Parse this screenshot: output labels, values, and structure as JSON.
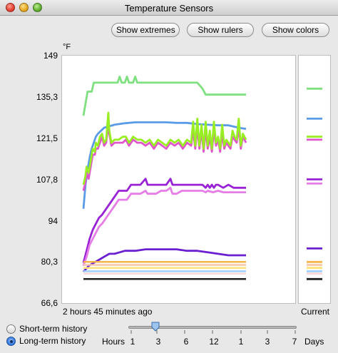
{
  "window": {
    "title": "Temperature Sensors"
  },
  "toolbar": {
    "show_extremes": "Show extremes",
    "show_rulers": "Show rulers",
    "show_colors": "Show colors"
  },
  "chart": {
    "unit": "°F",
    "x_left_label": "2 hours 45 minutes  ago",
    "x_right_label": "Current",
    "y_ticks": [
      "149",
      "135,3",
      "121,5",
      "107,8",
      "94",
      "80,3",
      "66,6"
    ]
  },
  "chart_data": {
    "type": "line",
    "ylim": [
      66.6,
      149
    ],
    "x_start_minutes_ago": 165,
    "series": [
      {
        "color": "#7fe07f",
        "current": 138,
        "points": [
          [
            0,
            129
          ],
          [
            2,
            133
          ],
          [
            4,
            137
          ],
          [
            8,
            137
          ],
          [
            10,
            140
          ],
          [
            30,
            140
          ],
          [
            33,
            140
          ],
          [
            35,
            142
          ],
          [
            37,
            140
          ],
          [
            40,
            140
          ],
          [
            42,
            142
          ],
          [
            44,
            140
          ],
          [
            48,
            140
          ],
          [
            50,
            142
          ],
          [
            52,
            140
          ],
          [
            60,
            140
          ],
          [
            75,
            140
          ],
          [
            80,
            140
          ],
          [
            90,
            140
          ],
          [
            110,
            140
          ],
          [
            115,
            138
          ],
          [
            118,
            136
          ],
          [
            130,
            136
          ],
          [
            150,
            136
          ],
          [
            157,
            136
          ]
        ]
      },
      {
        "color": "#5a9be8",
        "current": 128,
        "points": [
          [
            0,
            98
          ],
          [
            2,
            106
          ],
          [
            4,
            111
          ],
          [
            6,
            115
          ],
          [
            8,
            118
          ],
          [
            10,
            120
          ],
          [
            12,
            122
          ],
          [
            14,
            123
          ],
          [
            17,
            124
          ],
          [
            20,
            125
          ],
          [
            25,
            125.5
          ],
          [
            30,
            126
          ],
          [
            40,
            126.5
          ],
          [
            50,
            126.8
          ],
          [
            60,
            126.8
          ],
          [
            70,
            126.8
          ],
          [
            80,
            126.8
          ],
          [
            90,
            126.6
          ],
          [
            100,
            126.6
          ],
          [
            110,
            126.2
          ],
          [
            120,
            126
          ],
          [
            130,
            125.8
          ],
          [
            140,
            125.8
          ],
          [
            150,
            125
          ],
          [
            157,
            124.6
          ]
        ]
      },
      {
        "color": "#e055cc",
        "current": 121,
        "points": [
          [
            0,
            104
          ],
          [
            2,
            107
          ],
          [
            3,
            110
          ],
          [
            5,
            108
          ],
          [
            7,
            112
          ],
          [
            9,
            116
          ],
          [
            11,
            116
          ],
          [
            12,
            118
          ],
          [
            14,
            118
          ],
          [
            16,
            120
          ],
          [
            18,
            122
          ],
          [
            20,
            119
          ],
          [
            22,
            120
          ],
          [
            24,
            126
          ],
          [
            25,
            123
          ],
          [
            27,
            119
          ],
          [
            30,
            120
          ],
          [
            34,
            120
          ],
          [
            38,
            120
          ],
          [
            41,
            121
          ],
          [
            44,
            119
          ],
          [
            48,
            121
          ],
          [
            52,
            120
          ],
          [
            56,
            120
          ],
          [
            60,
            119
          ],
          [
            64,
            120
          ],
          [
            68,
            118
          ],
          [
            72,
            120
          ],
          [
            76,
            119
          ],
          [
            80,
            118
          ],
          [
            84,
            120
          ],
          [
            88,
            119
          ],
          [
            92,
            120
          ],
          [
            96,
            118
          ],
          [
            100,
            120
          ],
          [
            104,
            119
          ],
          [
            106,
            124
          ],
          [
            108,
            118
          ],
          [
            110,
            125
          ],
          [
            112,
            118
          ],
          [
            114,
            124
          ],
          [
            116,
            117
          ],
          [
            118,
            124
          ],
          [
            120,
            118
          ],
          [
            122,
            122
          ],
          [
            124,
            117
          ],
          [
            126,
            124
          ],
          [
            128,
            119
          ],
          [
            130,
            121
          ],
          [
            132,
            117
          ],
          [
            134,
            123
          ],
          [
            136,
            118
          ],
          [
            138,
            120
          ],
          [
            140,
            119
          ],
          [
            142,
            118
          ],
          [
            144,
            122
          ],
          [
            146,
            121
          ],
          [
            148,
            120
          ],
          [
            150,
            125
          ],
          [
            152,
            118
          ],
          [
            154,
            122
          ],
          [
            157,
            120
          ]
        ]
      },
      {
        "color": "#98ee22",
        "current": 122,
        "points": [
          [
            0,
            106
          ],
          [
            2,
            109
          ],
          [
            3,
            112
          ],
          [
            5,
            110
          ],
          [
            7,
            114
          ],
          [
            9,
            118
          ],
          [
            11,
            117
          ],
          [
            12,
            120
          ],
          [
            14,
            119
          ],
          [
            16,
            122
          ],
          [
            18,
            123
          ],
          [
            20,
            120
          ],
          [
            22,
            121
          ],
          [
            24,
            130
          ],
          [
            25,
            124
          ],
          [
            27,
            120
          ],
          [
            30,
            121
          ],
          [
            34,
            121
          ],
          [
            38,
            122
          ],
          [
            41,
            122
          ],
          [
            44,
            120
          ],
          [
            48,
            122
          ],
          [
            52,
            121
          ],
          [
            56,
            121
          ],
          [
            60,
            120
          ],
          [
            64,
            121
          ],
          [
            68,
            119
          ],
          [
            72,
            121
          ],
          [
            76,
            120
          ],
          [
            80,
            119
          ],
          [
            84,
            121
          ],
          [
            88,
            120
          ],
          [
            92,
            121
          ],
          [
            96,
            119
          ],
          [
            100,
            121
          ],
          [
            104,
            120
          ],
          [
            106,
            127
          ],
          [
            108,
            119
          ],
          [
            110,
            128
          ],
          [
            112,
            119
          ],
          [
            114,
            126
          ],
          [
            116,
            118
          ],
          [
            118,
            127
          ],
          [
            120,
            119
          ],
          [
            122,
            124
          ],
          [
            124,
            118
          ],
          [
            126,
            127
          ],
          [
            128,
            120
          ],
          [
            130,
            122
          ],
          [
            132,
            118
          ],
          [
            134,
            126
          ],
          [
            136,
            119
          ],
          [
            138,
            121
          ],
          [
            140,
            120
          ],
          [
            142,
            119
          ],
          [
            144,
            124
          ],
          [
            146,
            122
          ],
          [
            148,
            121
          ],
          [
            150,
            128
          ],
          [
            152,
            119
          ],
          [
            154,
            123
          ],
          [
            157,
            121
          ]
        ]
      },
      {
        "color": "#9a22d6",
        "current": 107.8,
        "points": [
          [
            0,
            80
          ],
          [
            3,
            84
          ],
          [
            6,
            88
          ],
          [
            9,
            91
          ],
          [
            12,
            93
          ],
          [
            15,
            95
          ],
          [
            18,
            96
          ],
          [
            22,
            98
          ],
          [
            26,
            100
          ],
          [
            30,
            102
          ],
          [
            34,
            104
          ],
          [
            38,
            104
          ],
          [
            42,
            104
          ],
          [
            46,
            106
          ],
          [
            50,
            106
          ],
          [
            55,
            106
          ],
          [
            60,
            108
          ],
          [
            62,
            106
          ],
          [
            66,
            106
          ],
          [
            70,
            106
          ],
          [
            75,
            106
          ],
          [
            80,
            106
          ],
          [
            84,
            108
          ],
          [
            86,
            106
          ],
          [
            90,
            106
          ],
          [
            95,
            106
          ],
          [
            100,
            106
          ],
          [
            105,
            106
          ],
          [
            110,
            106
          ],
          [
            115,
            106
          ],
          [
            118,
            105
          ],
          [
            120,
            106
          ],
          [
            122,
            105
          ],
          [
            124,
            106
          ],
          [
            126,
            105
          ],
          [
            128,
            106
          ],
          [
            130,
            106
          ],
          [
            135,
            105
          ],
          [
            140,
            106
          ],
          [
            145,
            105
          ],
          [
            150,
            105
          ],
          [
            157,
            105
          ]
        ]
      },
      {
        "color": "#e67de6",
        "current": 106.4,
        "points": [
          [
            0,
            79
          ],
          [
            3,
            82
          ],
          [
            6,
            86
          ],
          [
            9,
            88
          ],
          [
            12,
            90
          ],
          [
            15,
            92
          ],
          [
            18,
            93
          ],
          [
            22,
            95
          ],
          [
            26,
            97
          ],
          [
            30,
            99
          ],
          [
            34,
            101
          ],
          [
            38,
            101
          ],
          [
            42,
            101
          ],
          [
            46,
            103
          ],
          [
            50,
            103
          ],
          [
            55,
            103
          ],
          [
            60,
            104
          ],
          [
            62,
            103
          ],
          [
            66,
            103
          ],
          [
            70,
            103
          ],
          [
            75,
            104
          ],
          [
            80,
            104
          ],
          [
            84,
            105
          ],
          [
            86,
            103
          ],
          [
            90,
            103
          ],
          [
            95,
            104
          ],
          [
            100,
            104
          ],
          [
            105,
            104
          ],
          [
            110,
            104
          ],
          [
            115,
            104
          ],
          [
            118,
            103.5
          ],
          [
            120,
            104
          ],
          [
            125,
            103.5
          ],
          [
            130,
            104
          ],
          [
            135,
            103.5
          ],
          [
            140,
            103.5
          ],
          [
            145,
            103.5
          ],
          [
            150,
            103.5
          ],
          [
            157,
            103.5
          ]
        ]
      },
      {
        "color": "#6a1fd1",
        "current": 84.8,
        "points": [
          [
            0,
            77
          ],
          [
            5,
            79
          ],
          [
            10,
            80
          ],
          [
            15,
            81
          ],
          [
            20,
            82
          ],
          [
            25,
            83
          ],
          [
            30,
            83
          ],
          [
            35,
            83.5
          ],
          [
            40,
            84
          ],
          [
            50,
            84
          ],
          [
            60,
            84.5
          ],
          [
            70,
            84.5
          ],
          [
            80,
            84.5
          ],
          [
            90,
            84.5
          ],
          [
            100,
            84
          ],
          [
            110,
            84
          ],
          [
            120,
            83.5
          ],
          [
            130,
            83
          ],
          [
            140,
            82.5
          ],
          [
            150,
            82.5
          ],
          [
            157,
            82.5
          ]
        ]
      },
      {
        "color": "#f5b54a",
        "current": 80.3,
        "points": [
          [
            0,
            80.3
          ],
          [
            157,
            80.3
          ]
        ]
      },
      {
        "color": "#f7c6a8",
        "current": 79.3,
        "points": [
          [
            0,
            79.3
          ],
          [
            157,
            79.3
          ]
        ]
      },
      {
        "color": "#ffe27a",
        "current": 78.3,
        "points": [
          [
            0,
            78.3
          ],
          [
            157,
            78.3
          ]
        ]
      },
      {
        "color": "#9fd0ff",
        "current": 77.2,
        "points": [
          [
            0,
            77.2
          ],
          [
            157,
            77.2
          ]
        ]
      },
      {
        "color": "#ffd7d7",
        "current": 76.4,
        "points": [
          [
            0,
            76.4
          ],
          [
            157,
            76.4
          ]
        ]
      },
      {
        "color": "#222222",
        "current": 74.6,
        "points": [
          [
            0,
            74.6
          ],
          [
            157,
            74.6
          ]
        ]
      }
    ]
  },
  "history": {
    "short_term": "Short-term history",
    "long_term": "Long-term history",
    "selected": "long_term"
  },
  "scale": {
    "hours_label": "Hours",
    "days_label": "Days",
    "values": [
      "1",
      "3",
      "6",
      "12",
      "1",
      "3",
      "7"
    ],
    "slider_value": "3 hours"
  },
  "colors": {
    "window_bg": "#e8e8e8",
    "plot_bg": "#ffffff"
  }
}
